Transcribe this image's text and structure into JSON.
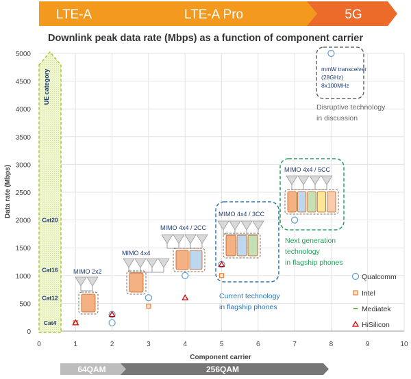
{
  "banner": {
    "segments": [
      {
        "label": "LTE-A",
        "color": "#f39a1e"
      },
      {
        "label": "LTE-A Pro",
        "color": "#f39a1e"
      },
      {
        "label": "5G",
        "color": "#ec6a2a"
      }
    ]
  },
  "chart_data": {
    "type": "scatter",
    "title": "Downlink peak data rate (Mbps) as a function of component carrier",
    "xlabel": "Component carrier",
    "ylabel": "Data rate (Mbps)",
    "xlim": [
      0,
      10
    ],
    "ylim": [
      0,
      5000
    ],
    "xticks": [
      "0",
      "1",
      "2",
      "3",
      "4",
      "5",
      "6",
      "7",
      "8",
      "9",
      "10"
    ],
    "yticks": [
      "0",
      "500",
      "1000",
      "1500",
      "2000",
      "2500",
      "3000",
      "3500",
      "4000",
      "4500",
      "5000"
    ],
    "grid": true,
    "ue_category": {
      "label": "UE category",
      "cats": [
        {
          "label": "Cat4",
          "value": 150
        },
        {
          "label": "Cat12",
          "value": 600
        },
        {
          "label": "Cat16",
          "value": 1100
        },
        {
          "label": "Cat20",
          "value": 2000
        }
      ]
    },
    "series": [
      {
        "name": "Qualcomm",
        "marker": "circle",
        "color": "#5b9bd5",
        "points": [
          [
            2,
            150
          ],
          [
            2,
            300
          ],
          [
            3,
            600
          ],
          [
            4,
            1000
          ],
          [
            5,
            1200
          ],
          [
            7,
            2000
          ],
          [
            8,
            5000
          ]
        ]
      },
      {
        "name": "Intel",
        "marker": "square",
        "color": "#ed7d31",
        "points": [
          [
            1,
            150
          ],
          [
            3,
            450
          ],
          [
            5,
            1000
          ]
        ]
      },
      {
        "name": "Mediatek",
        "marker": "dash",
        "color": "#70ad47",
        "points": []
      },
      {
        "name": "HiSilicon",
        "marker": "triangle",
        "color": "#c00000",
        "points": [
          [
            1,
            150
          ],
          [
            2,
            300
          ],
          [
            4,
            600
          ],
          [
            5,
            1200
          ]
        ]
      }
    ],
    "config_labels": [
      {
        "text": "MIMO 2x2",
        "cc": 1
      },
      {
        "text": "MIMO 4x4",
        "cc": 2
      },
      {
        "text": "MIMO 4x4 / 2CC",
        "cc": 3
      },
      {
        "text": "MIMO 4x4 / 3CC",
        "cc": 4
      },
      {
        "text": "MIMO 4x4 / 5CC",
        "cc": 5
      }
    ],
    "annotations": {
      "current": [
        "Current technology",
        "in flagship phones"
      ],
      "next": [
        "Next generation",
        "technology",
        "in flagship phones"
      ],
      "mmw": [
        "mmW transceiver",
        "(28GHz)",
        "8x100MHz"
      ],
      "disruptive": [
        "Disruptive technology",
        "in discussion"
      ]
    },
    "modulation": [
      {
        "label": "64QAM"
      },
      {
        "label": "256QAM"
      }
    ]
  }
}
